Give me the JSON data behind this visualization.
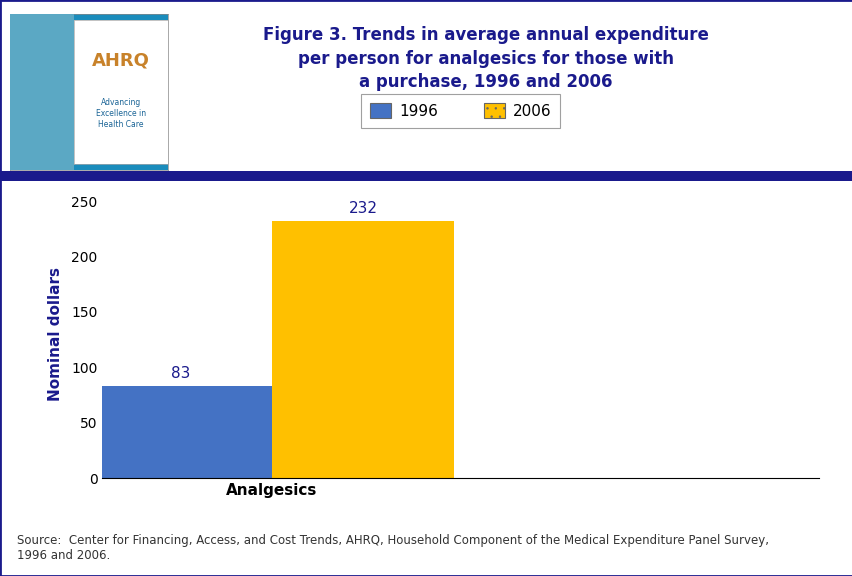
{
  "title_line1": "Figure 3. Trends in average annual expenditure",
  "title_line2": "per person for analgesics for those with",
  "title_line3": "a purchase, 1996 and 2006",
  "title_color": "#1a1a8c",
  "title_fontsize": 12,
  "values_1996": 83,
  "values_2006": 232,
  "color_1996": "#4472c4",
  "color_2006": "#ffc000",
  "ylabel": "Nominal dollars",
  "xlabel": "Analgesics",
  "ylim": [
    0,
    260
  ],
  "yticks": [
    0,
    50,
    100,
    150,
    200,
    250
  ],
  "legend_labels": [
    "1996",
    "2006"
  ],
  "source_text": "Source:  Center for Financing, Access, and Cost Trends, AHRQ, Household Component of the Medical Expenditure Panel Survey,\n1996 and 2006.",
  "background_color": "#ffffff",
  "header_bar_color": "#1a1a8c",
  "annotation_color": "#1a1a8c",
  "axis_label_color": "#1a1a8c",
  "tick_label_color": "#000000",
  "border_color": "#1a1a8c",
  "logo_bg_color": "#1a8cbc",
  "separator_color": "#1a1a8c"
}
